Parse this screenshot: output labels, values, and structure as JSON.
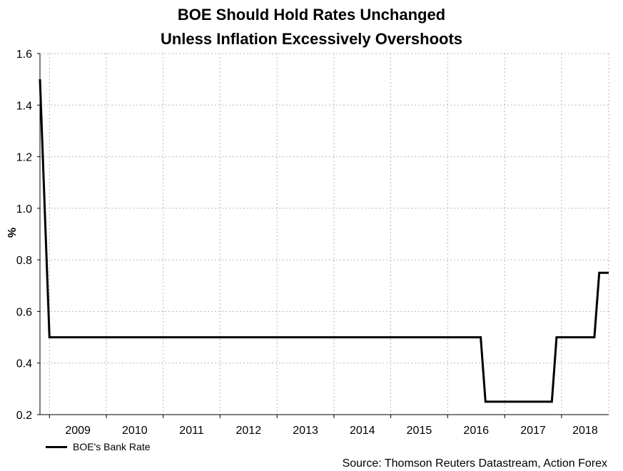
{
  "title_line1": "BOE Should Hold Rates Unchanged",
  "title_line2": "Unless Inflation Excessively Overshoots",
  "source": "Source: Thomson Reuters Datastream, Action Forex",
  "chart_data": {
    "type": "line",
    "ylabel": "%",
    "ylim": [
      0.2,
      1.6
    ],
    "yticks": [
      0.2,
      0.4,
      0.6,
      0.8,
      1.0,
      1.2,
      1.4,
      1.6
    ],
    "ytick_labels": [
      "0.2",
      "0.4",
      "0.6",
      "0.8",
      "1.0",
      "1.2",
      "1.4",
      "1.6"
    ],
    "xlim": [
      "2008-11-01",
      "2018-10-31"
    ],
    "xtick_labels": [
      "2009",
      "2010",
      "2011",
      "2012",
      "2013",
      "2014",
      "2015",
      "2016",
      "2017",
      "2018"
    ],
    "grid": true,
    "legend_position": "bottom-left",
    "series": [
      {
        "name": "BOE's Bank Rate",
        "color": "#000000",
        "x": [
          "2008-11-01",
          "2009-01-01",
          "2016-07-31",
          "2016-08-31",
          "2017-10-31",
          "2017-11-30",
          "2018-07-31",
          "2018-08-31",
          "2018-10-31"
        ],
        "y": [
          1.5,
          0.5,
          0.5,
          0.25,
          0.25,
          0.5,
          0.5,
          0.75,
          0.75
        ]
      }
    ]
  }
}
